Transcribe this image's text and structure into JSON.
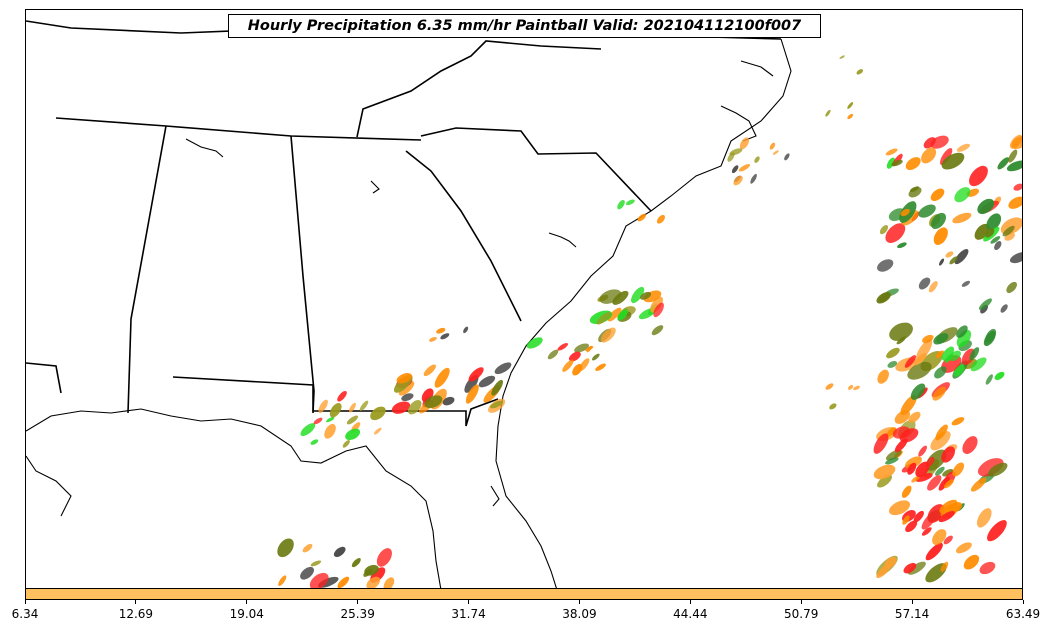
{
  "title": "Hourly Precipitation 6.35 mm/hr Paintball Valid: 202104112100f007",
  "colorbar": {
    "color": "#ffc060",
    "ticks": [
      "6.34",
      "12.69",
      "19.04",
      "25.39",
      "31.74",
      "38.09",
      "44.44",
      "50.79",
      "57.14",
      "63.49"
    ]
  },
  "paintball_colors": [
    "#2e8b2e",
    "#22dd22",
    "#ff2020",
    "#ff8c00",
    "#ffa030",
    "#8b1a1a",
    "#6b7a10",
    "#9a9a20",
    "#444444"
  ],
  "boundaries": {
    "state_line_color": "#000000",
    "coast_line_color": "#000000"
  }
}
